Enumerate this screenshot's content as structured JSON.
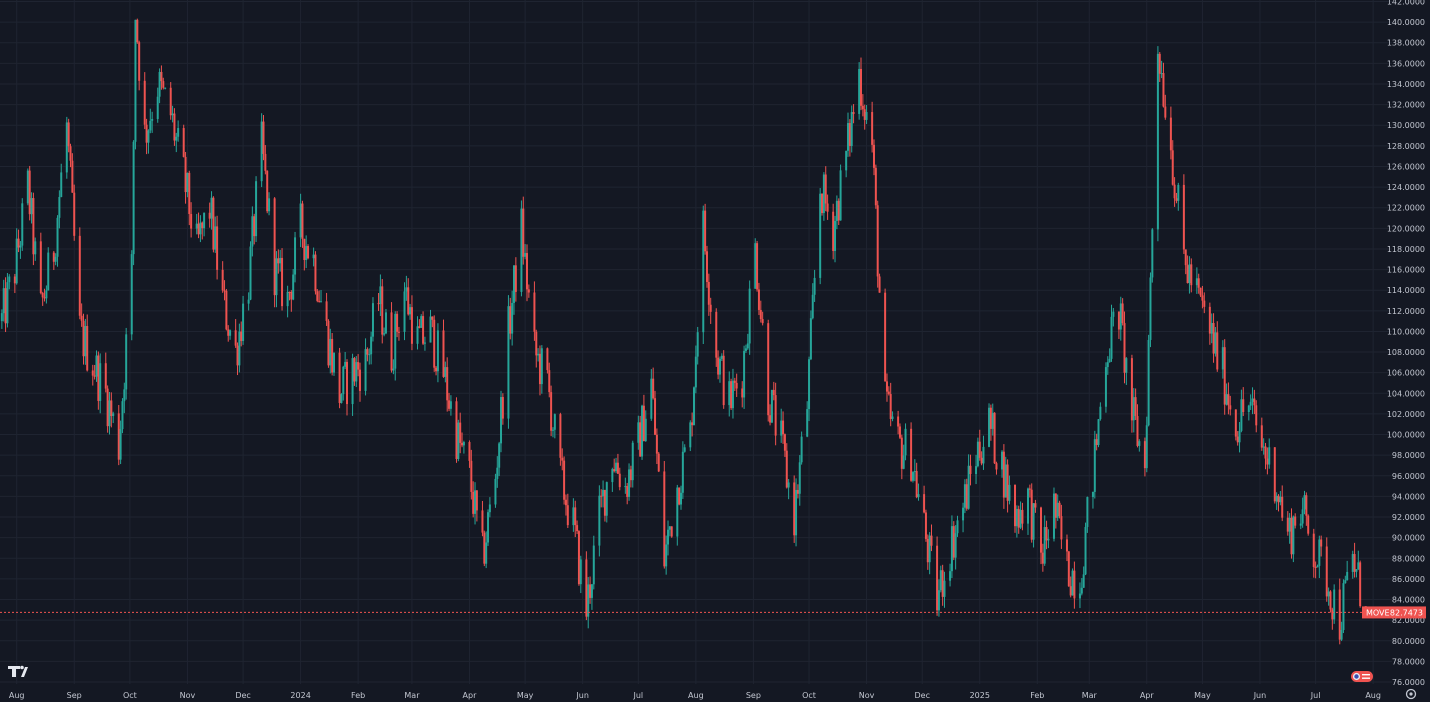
{
  "chart_data": {
    "type": "candlestick",
    "symbol": "MOVE",
    "last_value": "82.7473",
    "y_axis": {
      "range": [
        76,
        142
      ],
      "ticks": [
        "142.0000",
        "140.0000",
        "138.0000",
        "136.0000",
        "134.0000",
        "132.0000",
        "130.0000",
        "128.0000",
        "126.0000",
        "124.0000",
        "122.0000",
        "120.0000",
        "118.0000",
        "116.0000",
        "114.0000",
        "112.0000",
        "110.0000",
        "108.0000",
        "106.0000",
        "104.0000",
        "102.0000",
        "100.0000",
        "98.0000",
        "96.0000",
        "94.0000",
        "92.0000",
        "90.0000",
        "88.0000",
        "86.0000",
        "84.0000",
        "82.0000",
        "80.0000",
        "78.0000",
        "76.0000"
      ]
    },
    "x_axis": {
      "range": [
        "2023-07-23",
        "2025-08-02"
      ],
      "ticks": [
        {
          "label": "Aug",
          "date": "2023-08-01"
        },
        {
          "label": "Sep",
          "date": "2023-09-01"
        },
        {
          "label": "Oct",
          "date": "2023-10-01"
        },
        {
          "label": "Nov",
          "date": "2023-11-01"
        },
        {
          "label": "Dec",
          "date": "2023-12-01"
        },
        {
          "label": "2024",
          "date": "2024-01-01"
        },
        {
          "label": "Feb",
          "date": "2024-02-01"
        },
        {
          "label": "Mar",
          "date": "2024-03-01"
        },
        {
          "label": "Apr",
          "date": "2024-04-01"
        },
        {
          "label": "May",
          "date": "2024-05-01"
        },
        {
          "label": "Jun",
          "date": "2024-06-01"
        },
        {
          "label": "Jul",
          "date": "2024-07-01"
        },
        {
          "label": "Aug",
          "date": "2024-08-01"
        },
        {
          "label": "Sep",
          "date": "2024-09-01"
        },
        {
          "label": "Oct",
          "date": "2024-10-01"
        },
        {
          "label": "Nov",
          "date": "2024-11-01"
        },
        {
          "label": "Dec",
          "date": "2024-12-01"
        },
        {
          "label": "2025",
          "date": "2025-01-01"
        },
        {
          "label": "Feb",
          "date": "2025-02-01"
        },
        {
          "label": "Mar",
          "date": "2025-03-01"
        },
        {
          "label": "Apr",
          "date": "2025-04-01"
        },
        {
          "label": "May",
          "date": "2025-05-01"
        },
        {
          "label": "Jun",
          "date": "2025-06-01"
        },
        {
          "label": "Jul",
          "date": "2025-07-01"
        },
        {
          "label": "Aug",
          "date": "2025-08-01"
        }
      ]
    },
    "grid": true,
    "series": [
      {
        "name": "MOVE",
        "points": [
          [
            "2023-07-24",
            111
          ],
          [
            "2023-07-31",
            116
          ],
          [
            "2023-08-07",
            124
          ],
          [
            "2023-08-14",
            112
          ],
          [
            "2023-08-21",
            118
          ],
          [
            "2023-08-28",
            130
          ],
          [
            "2023-09-04",
            110
          ],
          [
            "2023-09-11",
            107
          ],
          [
            "2023-09-18",
            104
          ],
          [
            "2023-09-25",
            99
          ],
          [
            "2023-10-02",
            116
          ],
          [
            "2023-10-04",
            141
          ],
          [
            "2023-10-09",
            129
          ],
          [
            "2023-10-16",
            134
          ],
          [
            "2023-10-23",
            131
          ],
          [
            "2023-10-30",
            125
          ],
          [
            "2023-11-06",
            118
          ],
          [
            "2023-11-13",
            122
          ],
          [
            "2023-11-20",
            113
          ],
          [
            "2023-11-27",
            108
          ],
          [
            "2023-12-04",
            115
          ],
          [
            "2023-12-11",
            128
          ],
          [
            "2023-12-18",
            116
          ],
          [
            "2023-12-25",
            113
          ],
          [
            "2024-01-01",
            120
          ],
          [
            "2024-01-08",
            117
          ],
          [
            "2024-01-15",
            110
          ],
          [
            "2024-01-22",
            104
          ],
          [
            "2024-01-29",
            106
          ],
          [
            "2024-02-05",
            107
          ],
          [
            "2024-02-12",
            113
          ],
          [
            "2024-02-19",
            108
          ],
          [
            "2024-02-26",
            114
          ],
          [
            "2024-03-04",
            109
          ],
          [
            "2024-03-11",
            110
          ],
          [
            "2024-03-18",
            106
          ],
          [
            "2024-03-25",
            100
          ],
          [
            "2024-04-01",
            96
          ],
          [
            "2024-04-08",
            88
          ],
          [
            "2024-04-15",
            96
          ],
          [
            "2024-04-22",
            110
          ],
          [
            "2024-04-29",
            120
          ],
          [
            "2024-05-06",
            108
          ],
          [
            "2024-05-13",
            105
          ],
          [
            "2024-05-20",
            96
          ],
          [
            "2024-05-27",
            91
          ],
          [
            "2024-06-03",
            83
          ],
          [
            "2024-06-10",
            92
          ],
          [
            "2024-06-17",
            98
          ],
          [
            "2024-06-24",
            95
          ],
          [
            "2024-07-01",
            99
          ],
          [
            "2024-07-08",
            105
          ],
          [
            "2024-07-15",
            88
          ],
          [
            "2024-07-22",
            95
          ],
          [
            "2024-07-29",
            100
          ],
          [
            "2024-08-05",
            120
          ],
          [
            "2024-08-12",
            108
          ],
          [
            "2024-08-19",
            103
          ],
          [
            "2024-08-26",
            106
          ],
          [
            "2024-09-02",
            118
          ],
          [
            "2024-09-09",
            104
          ],
          [
            "2024-09-16",
            99
          ],
          [
            "2024-09-23",
            92
          ],
          [
            "2024-09-30",
            103
          ],
          [
            "2024-10-07",
            124
          ],
          [
            "2024-10-14",
            120
          ],
          [
            "2024-10-21",
            127
          ],
          [
            "2024-10-28",
            135
          ],
          [
            "2024-11-04",
            128
          ],
          [
            "2024-11-11",
            103
          ],
          [
            "2024-11-18",
            99
          ],
          [
            "2024-11-25",
            98
          ],
          [
            "2024-12-02",
            91
          ],
          [
            "2024-12-09",
            84
          ],
          [
            "2024-12-16",
            89
          ],
          [
            "2024-12-23",
            93
          ],
          [
            "2024-12-30",
            98
          ],
          [
            "2025-01-06",
            101
          ],
          [
            "2025-01-13",
            97
          ],
          [
            "2025-01-20",
            92
          ],
          [
            "2025-01-27",
            94
          ],
          [
            "2025-02-03",
            88
          ],
          [
            "2025-02-10",
            93
          ],
          [
            "2025-02-17",
            87
          ],
          [
            "2025-02-24",
            86
          ],
          [
            "2025-03-03",
            96
          ],
          [
            "2025-03-10",
            108
          ],
          [
            "2025-03-17",
            112
          ],
          [
            "2025-03-24",
            102
          ],
          [
            "2025-03-31",
            97
          ],
          [
            "2025-04-07",
            138
          ],
          [
            "2025-04-14",
            128
          ],
          [
            "2025-04-21",
            117
          ],
          [
            "2025-05-05",
            110
          ],
          [
            "2025-05-12",
            106
          ],
          [
            "2025-05-19",
            101
          ],
          [
            "2025-05-26",
            103
          ],
          [
            "2025-06-02",
            99
          ],
          [
            "2025-06-09",
            96
          ],
          [
            "2025-06-16",
            90
          ],
          [
            "2025-06-23",
            93
          ],
          [
            "2025-06-30",
            89
          ],
          [
            "2025-07-07",
            86
          ],
          [
            "2025-07-14",
            82
          ],
          [
            "2025-07-21",
            88
          ],
          [
            "2025-07-28",
            82.7473
          ]
        ]
      }
    ],
    "colors": {
      "up": "#26a69a",
      "down": "#ef5350",
      "background": "#141823",
      "grid": "#1f2431",
      "axis_text": "#c3c7d1",
      "badge": "#ef5350"
    }
  },
  "ui": {
    "logo_icon": "tradingview-logo-icon",
    "settings_icon": "settings-gear-icon",
    "flag_icon": "us-flag-icon"
  }
}
